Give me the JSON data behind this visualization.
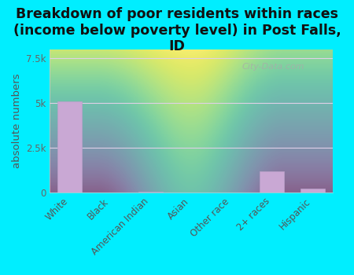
{
  "title": "Breakdown of poor residents within races\n(income below poverty level) in Post Falls,\nID",
  "ylabel": "absolute numbers",
  "categories": [
    "White",
    "Black",
    "American Indian",
    "Asian",
    "Other race",
    "2+ races",
    "Hispanic"
  ],
  "values": [
    5100,
    0,
    60,
    0,
    10,
    1200,
    200
  ],
  "bar_color": "#c9a8d4",
  "bar_edge_color": "#b8a0c8",
  "ylim": [
    0,
    8000
  ],
  "yticks": [
    0,
    2500,
    5000,
    7500
  ],
  "ytick_labels": [
    "0",
    "2.5k",
    "5k",
    "7.5k"
  ],
  "bg_outer": "#00eeff",
  "grid_color": "#e0d0e8",
  "watermark": "City-Data.com",
  "title_fontsize": 12.5,
  "ylabel_fontsize": 9.5,
  "tick_label_fontsize": 8.5,
  "plot_bg_color": "#e8f5e0"
}
